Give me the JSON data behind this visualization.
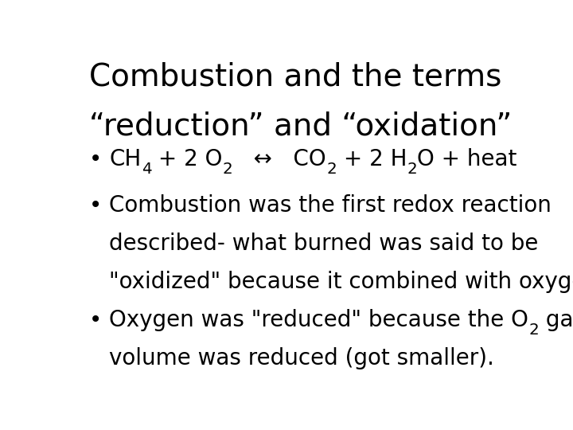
{
  "background_color": "#ffffff",
  "title_line1": "Combustion and the terms",
  "title_line2": "“reduction” and “oxidation”",
  "title_fontsize": 28,
  "bullet_fontsize": 20,
  "font": "DejaVu Sans",
  "bullet1_parts": [
    [
      "CH",
      false
    ],
    [
      "4",
      true
    ],
    [
      " + 2 O",
      false
    ],
    [
      "2",
      true
    ],
    [
      "   ↔   CO",
      false
    ],
    [
      "2",
      true
    ],
    [
      " + 2 H",
      false
    ],
    [
      "2",
      true
    ],
    [
      "O + heat",
      false
    ]
  ],
  "bullet2_lines": [
    "Combustion was the first redox reaction",
    "described- what burned was said to be",
    "\"oxidized\" because it combined with oxygen"
  ],
  "bullet3_line1_parts": [
    [
      "Oxygen was \"reduced\" because the O",
      false
    ],
    [
      "2",
      true
    ],
    [
      " gas",
      false
    ]
  ],
  "bullet3_line2": "volume was reduced (got smaller)."
}
